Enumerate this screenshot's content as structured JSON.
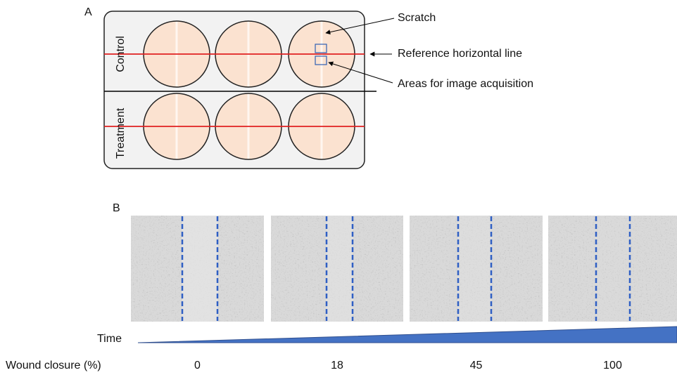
{
  "panel_a": {
    "label": "A",
    "rows": [
      "Control",
      "Treatment"
    ],
    "annotations": [
      "Scratch",
      "Reference horizontal line",
      "Areas for image acquisition"
    ]
  },
  "panel_b": {
    "label": "B",
    "time_label": "Time",
    "closure_label": "Wound closure (%)",
    "closure_values": [
      0,
      18,
      45,
      100
    ]
  }
}
